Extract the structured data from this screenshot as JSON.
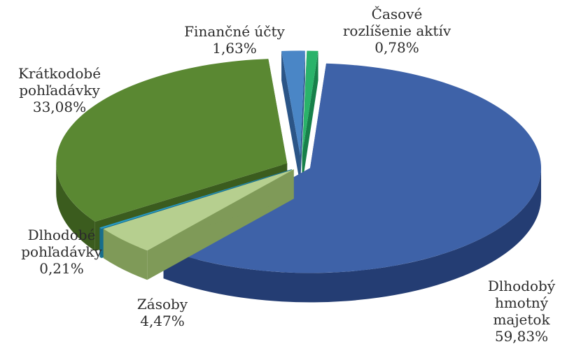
{
  "chart_data": {
    "type": "pie",
    "title": "",
    "style": "3d-exploded",
    "slices": [
      {
        "name": "Dlhodobý hmotný majetok",
        "label_lines": [
          "Dlhodobý",
          "hmotný",
          "majetok"
        ],
        "value_text": "59,83%",
        "value": 59.83,
        "color": "#3e62a8",
        "side_color": "#243d73"
      },
      {
        "name": "Zásoby",
        "label_lines": [
          "Zásoby"
        ],
        "value_text": "4,47%",
        "value": 4.47,
        "color": "#b6cf8f",
        "side_color": "#7f9a58"
      },
      {
        "name": "Dlhodobé pohľadávky",
        "label_lines": [
          "Dlhodobé",
          "pohľadávky"
        ],
        "value_text": "0,21%",
        "value": 0.21,
        "color": "#2a9cc4",
        "side_color": "#176e8d"
      },
      {
        "name": "Krátkodobé pohľadávky",
        "label_lines": [
          "Krátkodobé",
          "pohľadávky"
        ],
        "value_text": "33,08%",
        "value": 33.08,
        "color": "#5a8832",
        "side_color": "#3b5c1e"
      },
      {
        "name": "Finančné účty",
        "label_lines": [
          "Finančné účty"
        ],
        "value_text": "1,63%",
        "value": 1.63,
        "color": "#4a86c6",
        "side_color": "#2b5587"
      },
      {
        "name": "Časové rozlíšenie aktív",
        "label_lines": [
          "Časové",
          "rozlíšenie aktív"
        ],
        "value_text": "0,78%",
        "value": 0.78,
        "color": "#2ab36a",
        "side_color": "#17804a"
      }
    ]
  }
}
